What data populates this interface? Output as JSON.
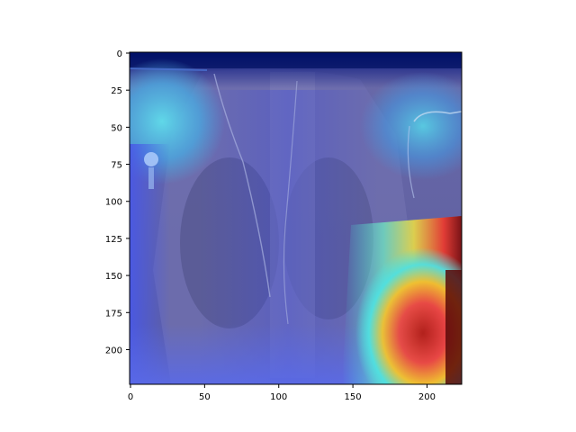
{
  "figure": {
    "image_description_kind": "chest x-ray with heatmap overlay",
    "colormap": "jet",
    "overlay_colors": [
      "#00007f",
      "#0000ff",
      "#00ffff",
      "#ffff00",
      "#ff0000",
      "#7f0000"
    ]
  },
  "axes": {
    "x_ticks": [
      0,
      50,
      100,
      150,
      200
    ],
    "y_ticks": [
      0,
      25,
      50,
      75,
      100,
      125,
      150,
      175,
      200
    ],
    "x_range": [
      0,
      224
    ],
    "y_range": [
      0,
      224
    ],
    "y_inverted": true
  }
}
